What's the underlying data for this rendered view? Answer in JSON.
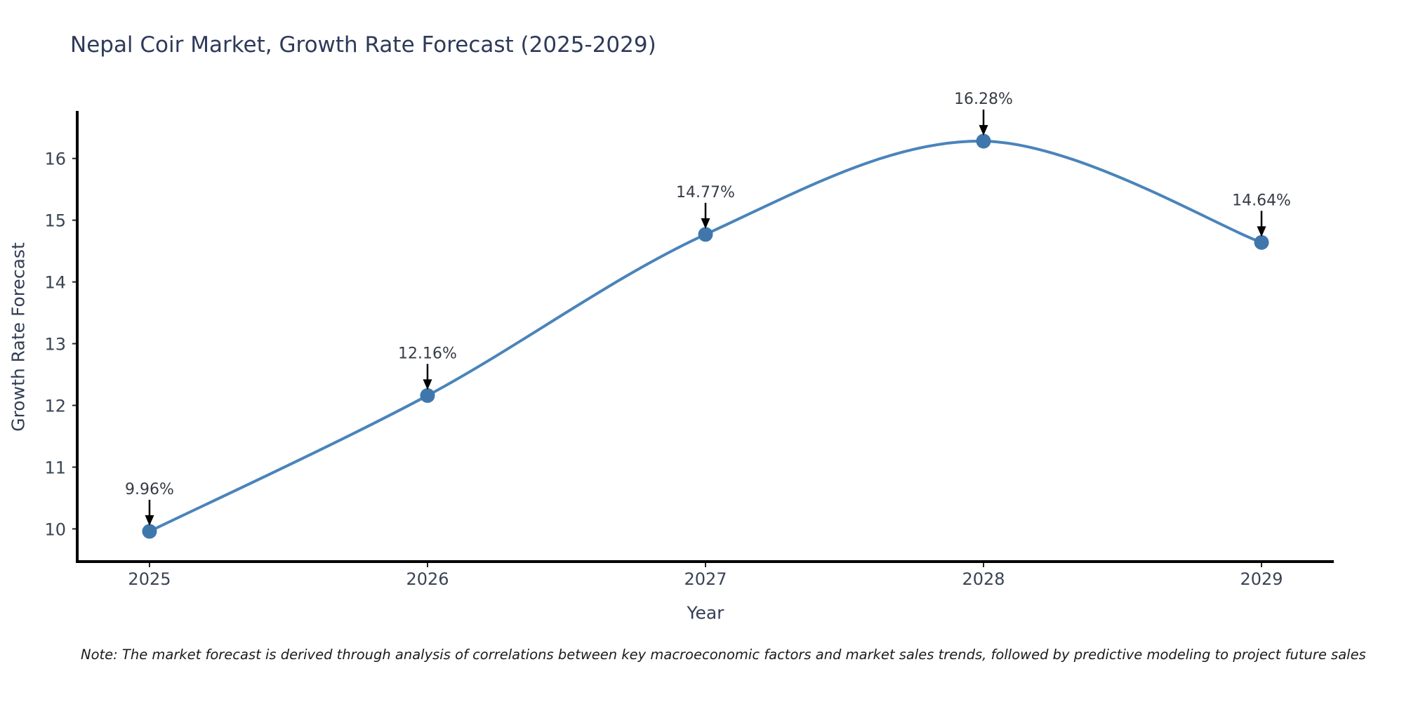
{
  "title": {
    "text": "Nepal Coir Market, Growth Rate Forecast (2025-2029)",
    "color": "#2e3a59"
  },
  "note": {
    "text": "Note: The market forecast is derived through analysis of correlations between key macroeconomic factors and market sales trends, followed by predictive modeling to project future sales"
  },
  "chart_data": {
    "type": "line",
    "title": "Nepal Coir Market, Growth Rate Forecast (2025-2029)",
    "xlabel": "Year",
    "ylabel": "Growth Rate Forecast",
    "x": [
      2025,
      2026,
      2027,
      2028,
      2029
    ],
    "series": [
      {
        "name": "Growth Rate Forecast",
        "values": [
          9.96,
          12.16,
          14.77,
          16.28,
          14.64
        ],
        "labels": [
          "9.96%",
          "12.16%",
          "14.77%",
          "16.28%",
          "14.64%"
        ]
      }
    ],
    "xticks": [
      2025,
      2026,
      2027,
      2028,
      2029
    ],
    "yticks": [
      10,
      11,
      12,
      13,
      14,
      15,
      16
    ],
    "xlim": [
      2024.74,
      2029.26
    ],
    "ylim": [
      9.47,
      16.77
    ],
    "grid": false,
    "legend_position": "none",
    "smooth_curve": true,
    "annotations_with_arrows": true,
    "line_color": "#4a84ba",
    "marker_color": "#3f77ad",
    "axis_color": "#000000",
    "tick_color": "#262626",
    "tick_label_color": "#3a4454",
    "annotation_text_color": "#363c46",
    "annotation_arrow_color": "#000000"
  }
}
